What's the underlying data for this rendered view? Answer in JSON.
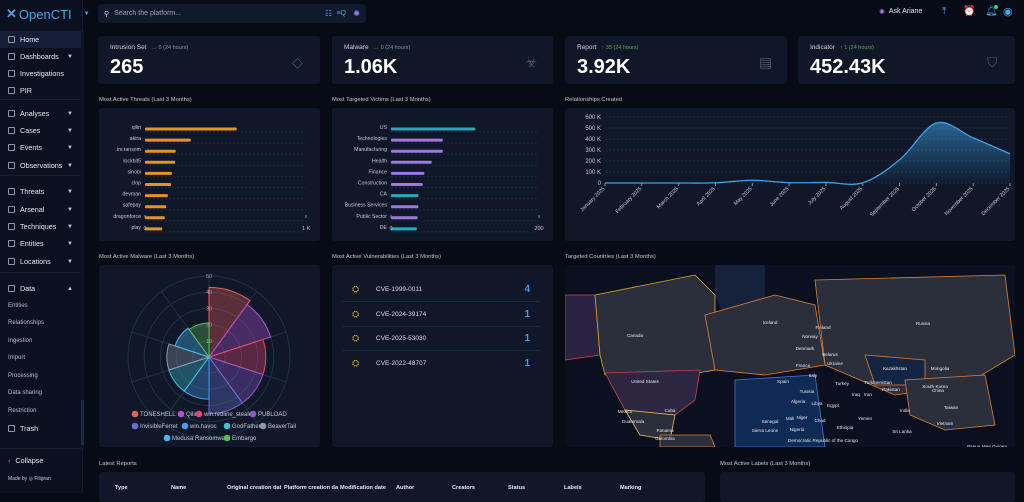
{
  "app": {
    "name": "OpenCTI"
  },
  "search": {
    "placeholder": "Search the platform..."
  },
  "topbar": {
    "ask_label": "Ask Ariane"
  },
  "sidebar": {
    "items": [
      {
        "label": "Home",
        "active": true
      },
      {
        "label": "Dashboards",
        "caret": true
      },
      {
        "label": "Investigations"
      },
      {
        "label": "PIR"
      },
      {
        "label": "Analyses",
        "caret": true
      },
      {
        "label": "Cases",
        "caret": true
      },
      {
        "label": "Events",
        "caret": true
      },
      {
        "label": "Observations",
        "caret": true
      },
      {
        "label": "Threats",
        "caret": true
      },
      {
        "label": "Arsenal",
        "caret": true
      },
      {
        "label": "Techniques",
        "caret": true
      },
      {
        "label": "Entities",
        "caret": true
      },
      {
        "label": "Locations",
        "caret": true
      },
      {
        "label": "Data",
        "caret": true
      }
    ],
    "data_sub": [
      "Entities",
      "Relationships",
      "Ingestion",
      "Import",
      "Processing",
      "Data sharing",
      "Restriction"
    ],
    "trash": "Trash",
    "collapse": "Collapse",
    "made_by": "Made by",
    "made_by_brand": "Filigran"
  },
  "stats": [
    {
      "label": "Intrusion Set",
      "delta": "→ 0 (24 hours)",
      "trend": "flat",
      "value": "265",
      "icon": "diamond-icon"
    },
    {
      "label": "Malware",
      "delta": "→ 0 (24 hours)",
      "trend": "flat",
      "value": "1.06K",
      "icon": "biohazard-icon"
    },
    {
      "label": "Report",
      "delta": "↑ 35 (24 hours)",
      "trend": "up",
      "value": "3.92K",
      "icon": "document-icon"
    },
    {
      "label": "Indicator",
      "delta": "↑ 1 (24 hours)",
      "trend": "up",
      "value": "452.43K",
      "icon": "shield-search-icon"
    }
  ],
  "widgets": {
    "threats_title": "Most Active Threats (Last 3 Months)",
    "victims_title": "Most Targeted Victims (Last 3 Months)",
    "relationships_title": "Relationships Created",
    "malware_title": "Most Active Malware (Last 3 Months)",
    "vulns_title": "Most Active Vulnerabilities (Last 3 Months)",
    "countries_title": "Targeted Countries (Last 3 Months)",
    "reports_title": "Latest Reports",
    "labels_title": "Most Active Labels (Last 3 Months)"
  },
  "vulnerabilities": [
    {
      "name": "CVE-1999-0011",
      "count": "4"
    },
    {
      "name": "CVE-2024-39174",
      "count": "1"
    },
    {
      "name": "CVE-2025-53030",
      "count": "1"
    },
    {
      "name": "CVE-2022-48707",
      "count": "1"
    }
  ],
  "reports_table": {
    "columns": [
      "Type",
      "Name",
      "Original creation dat",
      "Platform creation da",
      "Modification date",
      "Author",
      "Creators",
      "Status",
      "Labels",
      "Marking"
    ]
  },
  "map": {
    "labels": [
      "Canada",
      "United States",
      "Mexico",
      "Guatemala",
      "Cuba",
      "Panama",
      "Colombia",
      "Peru",
      "Iceland",
      "Norway",
      "Finland",
      "Denmark",
      "Belarus",
      "Ukraine",
      "Russia",
      "Kazakhstan",
      "Mongolia",
      "China",
      "Turkey",
      "Turkmenistan",
      "Iraq",
      "Iran",
      "Pakistan",
      "India",
      "Sri Lanka",
      "South Korea",
      "Taiwan",
      "Vietnam",
      "Papua New Guinea",
      "Tunisia",
      "Algeria",
      "Libya",
      "Egypt",
      "Mali",
      "Niger",
      "Chad",
      "Senegal",
      "Sierra Leone",
      "Nigeria",
      "Ethiopia",
      "Yemen",
      "Democratic Republic of the Congo",
      "France",
      "Spain",
      "Italy"
    ]
  },
  "chart_data": [
    {
      "type": "bar",
      "orientation": "horizontal",
      "title": "Most Active Threats (Last 3 Months)",
      "categories": [
        "qilin",
        "akira",
        "incransom",
        "lockbit5",
        "sinobi",
        "clop",
        "devman",
        "safepay",
        "dragonforce",
        "play"
      ],
      "values": [
        570,
        284,
        191,
        187,
        167,
        162,
        142,
        131,
        123,
        107
      ],
      "xlim": [
        0,
        1000
      ],
      "xticks": [
        "0",
        "1 K"
      ],
      "color": "#e5951f",
      "grid": true
    },
    {
      "type": "bar",
      "orientation": "horizontal",
      "title": "Most Targeted Victims (Last 3 Months)",
      "categories": [
        "US",
        "Technologies",
        "Manufacturing",
        "Health",
        "Finance",
        "Construction",
        "CA",
        "Business Services",
        "Public Sector",
        "DE"
      ],
      "values": [
        114,
        70,
        70,
        55,
        45,
        43,
        37,
        37,
        36,
        35
      ],
      "kinds": [
        "country",
        "sector",
        "sector",
        "sector",
        "sector",
        "sector",
        "country",
        "sector",
        "sector",
        "country"
      ],
      "colors": {
        "country": "#2aa9ba",
        "sector": "#9b79e0"
      },
      "xlim": [
        0,
        200
      ],
      "xticks": [
        "0",
        "200"
      ],
      "grid": true
    },
    {
      "type": "area",
      "title": "Relationships Created",
      "categories": [
        "January 2025",
        "February 2025",
        "March 2025",
        "April 2025",
        "May 2025",
        "June 2025",
        "July 2025",
        "August 2025",
        "September 2025",
        "October 2025",
        "November 2025",
        "December 2025"
      ],
      "values": [
        0,
        0,
        0,
        2000,
        25000,
        3000,
        5000,
        2000,
        210000,
        545000,
        410000,
        265000
      ],
      "ylim": [
        0,
        600000
      ],
      "yticks": [
        "0",
        "100 K",
        "200 K",
        "300 K",
        "400 K",
        "500 K",
        "600 K"
      ],
      "color": "#3ea3e6",
      "grid": true
    },
    {
      "type": "polar-area",
      "title": "Most Active Malware (Last 3 Months)",
      "rmax": 50,
      "rticks": [
        "10",
        "20",
        "30",
        "40",
        "50"
      ],
      "legend": "bottom",
      "series": [
        {
          "name": "TONESHELL",
          "value": 43,
          "color": "#e85d5d"
        },
        {
          "name": "Qilin",
          "value": 40,
          "color": "#b44fc9"
        },
        {
          "name": "win.redline_stealer",
          "value": 35,
          "color": "#e8456e"
        },
        {
          "name": "PUBLOAD",
          "value": 35,
          "color": "#9057cc"
        },
        {
          "name": "InvisibleFerret",
          "value": 35,
          "color": "#6a6fce"
        },
        {
          "name": "win.havoc",
          "value": 26,
          "color": "#4b9be8"
        },
        {
          "name": "GodFather",
          "value": 26,
          "color": "#3fc1d6"
        },
        {
          "name": "BeaverTail",
          "value": 26,
          "color": "#8a99a6"
        },
        {
          "name": "Medusa Ransomware",
          "value": 22,
          "color": "#4ab4f0"
        },
        {
          "name": "Embargo",
          "value": 21,
          "color": "#5cb85c"
        }
      ]
    }
  ]
}
